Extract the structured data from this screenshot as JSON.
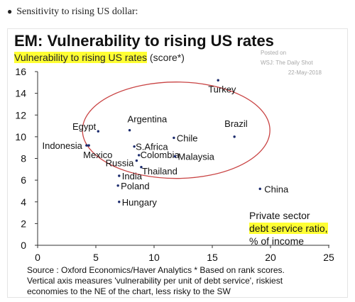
{
  "bullet": {
    "text": "Sensitivity to rising US dollar:"
  },
  "chart_data": {
    "type": "scatter",
    "title": "EM: Vulnerability to rising US rates",
    "subtitle_highlight": "Vulnerability to rising US rates",
    "subtitle_rest": " (score*)",
    "posted": [
      "Posted on",
      "WSJ: The Daily Shot",
      "22-May-2018"
    ],
    "xlim": [
      0,
      25
    ],
    "ylim": [
      0,
      16
    ],
    "x_ticks": [
      "0",
      "5",
      "10",
      "15",
      "20",
      "25"
    ],
    "y_ticks": [
      "0",
      "2",
      "4",
      "6",
      "8",
      "10",
      "12",
      "14",
      "16"
    ],
    "grid": false,
    "points": [
      {
        "label": "Turkey",
        "x": 15.5,
        "y": 15.2
      },
      {
        "label": "Brazil",
        "x": 16.9,
        "y": 10.0
      },
      {
        "label": "Chile",
        "x": 11.7,
        "y": 9.9
      },
      {
        "label": "Argentina",
        "x": 7.9,
        "y": 10.6
      },
      {
        "label": "Egypt",
        "x": 5.2,
        "y": 10.5
      },
      {
        "label": "Indonesia",
        "x": 4.2,
        "y": 9.2
      },
      {
        "label": "Mexico",
        "x": 4.4,
        "y": 9.2
      },
      {
        "label": "S.Africa",
        "x": 8.3,
        "y": 9.1
      },
      {
        "label": "Colombia",
        "x": 8.7,
        "y": 8.3
      },
      {
        "label": "Malaysia",
        "x": 11.8,
        "y": 8.2
      },
      {
        "label": "Russia",
        "x": 8.5,
        "y": 7.8
      },
      {
        "label": "India",
        "x": 7.0,
        "y": 6.4
      },
      {
        "label": "Thailand",
        "x": 8.9,
        "y": 7.2
      },
      {
        "label": "Poland",
        "x": 6.9,
        "y": 5.5
      },
      {
        "label": "Hungary",
        "x": 7.0,
        "y": 4.0
      },
      {
        "label": "China",
        "x": 19.1,
        "y": 5.2
      }
    ],
    "annotation": [
      "Private sector",
      "debt service ratio,",
      "% of income"
    ],
    "source": [
      "Source : Oxford Economics/Haver Analytics * Based on rank scores.",
      "Vertical axis measures 'vulnerability per unit of debt service', riskiest",
      "economies to the NE of the chart, less risky to the SW"
    ]
  }
}
